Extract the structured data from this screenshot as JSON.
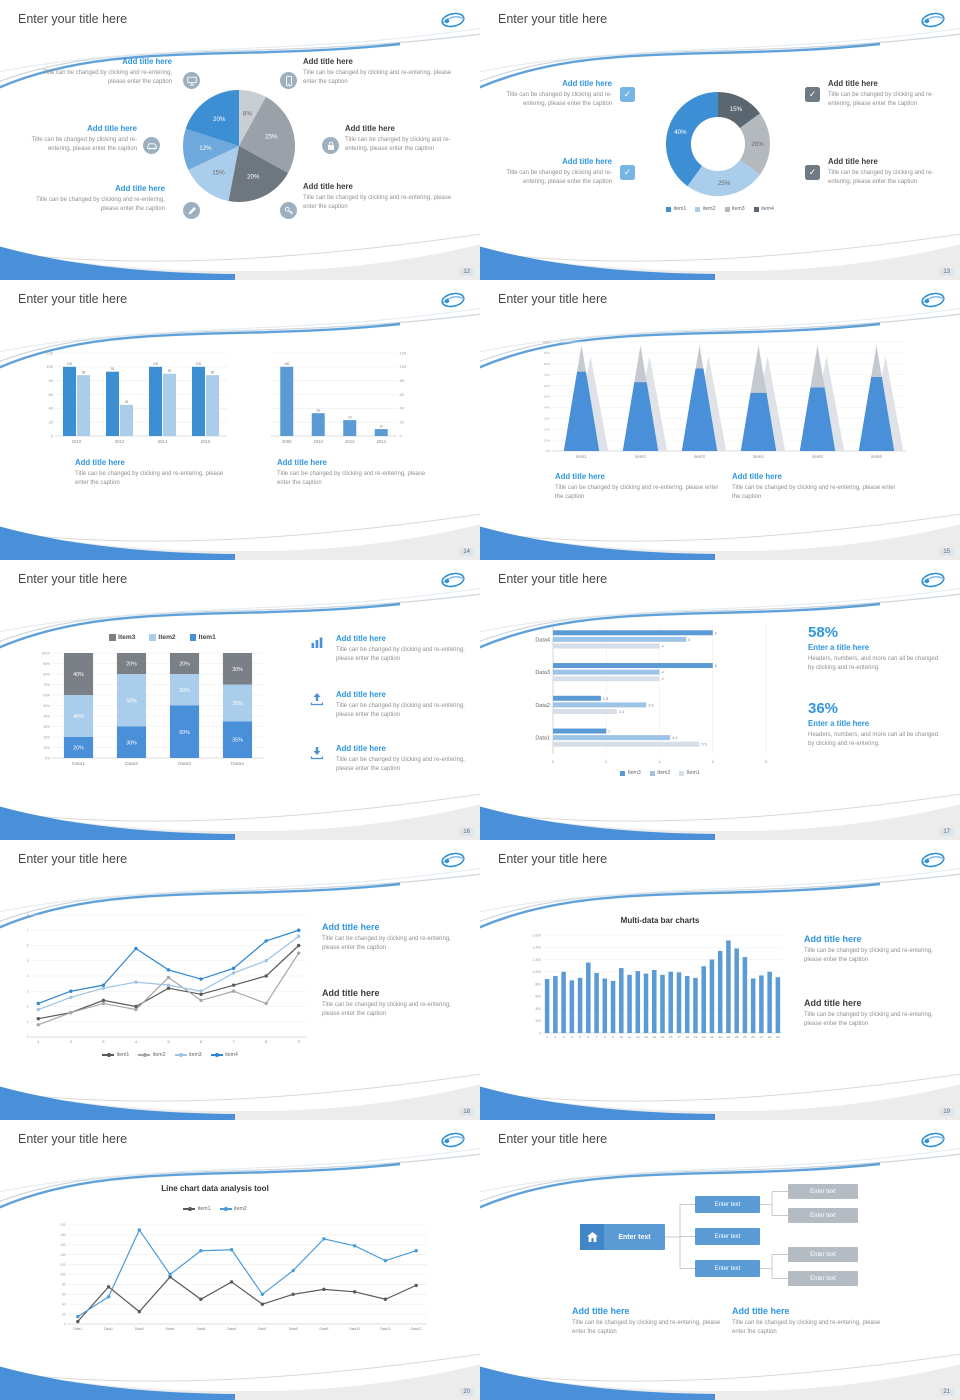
{
  "common": {
    "slide_title": "Enter your title here",
    "add_title": "Add title here",
    "caption": "Title can be changed by clicking and re-entering, please enter the caption",
    "stat_caption": "Headers, numbers, and more can all be changed by clicking and re-entering.",
    "enter_title": "Enter a title here",
    "enter_text": "Enter text"
  },
  "stats": {
    "percent1": "58%",
    "percent2": "36%"
  },
  "pages": [
    "12",
    "13",
    "14",
    "15",
    "16",
    "17",
    "18",
    "19",
    "20",
    "21"
  ],
  "chart_data": [
    {
      "id": "pie1",
      "type": "pie",
      "values": [
        8,
        25,
        20,
        15,
        12,
        20
      ],
      "labels": [
        "8%",
        "25%",
        "20%",
        "15%",
        "12%",
        "20%"
      ],
      "colors": [
        "#c9ced3",
        "#9aa1a8",
        "#6e767e",
        "#a9cdea",
        "#6fa8dc",
        "#3d8fd4"
      ]
    },
    {
      "id": "donut1",
      "type": "donut",
      "values": [
        15,
        20,
        25,
        40
      ],
      "labels": [
        "15%",
        "20%",
        "25%",
        "40%"
      ],
      "colors": [
        "#5b6770",
        "#b4b9be",
        "#a9cdea",
        "#3d8fd4"
      ],
      "legend": [
        {
          "label": "item1",
          "color": "#3d8fd4"
        },
        {
          "label": "item2",
          "color": "#a9cdea"
        },
        {
          "label": "item3",
          "color": "#b4b9be"
        },
        {
          "label": "item4",
          "color": "#5b6770"
        }
      ]
    },
    {
      "id": "bar1",
      "type": "vbar",
      "yaxis": "left",
      "ylim": [
        0,
        120
      ],
      "ystep": 20,
      "value_labels": true,
      "categories": [
        "2010",
        "2012",
        "2014",
        "2016"
      ],
      "series": [
        {
          "name": "s1",
          "color": "#3d8fd4",
          "values": [
            100,
            93,
            100,
            100
          ]
        },
        {
          "name": "s2",
          "color": "#a9cdea",
          "values": [
            88,
            45,
            90,
            88
          ]
        }
      ]
    },
    {
      "id": "bar2",
      "type": "vbar",
      "yaxis": "right",
      "ylim": [
        0,
        120
      ],
      "ystep": 20,
      "value_labels": true,
      "categories": [
        "2008",
        "2010",
        "2012",
        "2014"
      ],
      "series": [
        {
          "name": "s1",
          "color": "#5b9bd5",
          "values": [
            100,
            33,
            23,
            10
          ]
        }
      ]
    },
    {
      "id": "cone1",
      "type": "cone",
      "ylim": [
        0,
        100
      ],
      "ystep": 10,
      "categories": [
        "item1",
        "item2",
        "item3",
        "item4",
        "item5",
        "item6"
      ],
      "values": [
        75,
        65,
        78,
        55,
        60,
        70
      ],
      "front_color": "#4a90d9",
      "back_color": "#c5cad0"
    },
    {
      "id": "stack1",
      "type": "stacked",
      "ylim": [
        0,
        100
      ],
      "ystep": 10,
      "categories": [
        "Data1",
        "Data2",
        "Data3",
        "Data4"
      ],
      "series": [
        {
          "name": "Item1",
          "color": "#4a90d9",
          "values": [
            20,
            30,
            50,
            35
          ]
        },
        {
          "name": "Item2",
          "color": "#a9cdea",
          "values": [
            40,
            50,
            30,
            35
          ]
        },
        {
          "name": "Item3",
          "color": "#7b8087",
          "values": [
            40,
            20,
            20,
            30
          ]
        }
      ],
      "legend_order": [
        "Item3",
        "Item2",
        "Item1"
      ]
    },
    {
      "id": "hbar1",
      "type": "hbar",
      "xlim": [
        0,
        8
      ],
      "xstep": 2,
      "value_labels": true,
      "categories": [
        "Data4",
        "Data3",
        "Data2",
        "Data1"
      ],
      "series": [
        {
          "name": "Item3",
          "color": "#5b9bd5",
          "values": [
            6,
            6,
            1.8,
            2
          ]
        },
        {
          "name": "Item2",
          "color": "#9dc3e6",
          "values": [
            5,
            4,
            3.5,
            4.4
          ]
        },
        {
          "name": "Item1",
          "color": "#d6dee8",
          "values": [
            4,
            4,
            2.4,
            5.5
          ]
        }
      ]
    },
    {
      "id": "line4",
      "type": "line",
      "ylim": [
        0,
        8
      ],
      "ystep": 1,
      "x": [
        "1",
        "2",
        "3",
        "4",
        "5",
        "6",
        "7",
        "8",
        "9"
      ],
      "series": [
        {
          "name": "item1",
          "color": "#595959",
          "values": [
            1.2,
            1.6,
            2.4,
            2.0,
            3.2,
            2.8,
            3.4,
            4.0,
            6.0
          ]
        },
        {
          "name": "item2",
          "color": "#a6a6a6",
          "values": [
            0.8,
            1.6,
            2.2,
            1.8,
            3.9,
            2.4,
            3.0,
            2.2,
            5.5
          ]
        },
        {
          "name": "item3",
          "color": "#9dc3e6",
          "values": [
            1.8,
            2.6,
            3.2,
            3.6,
            3.4,
            3.0,
            4.2,
            5.0,
            6.6
          ]
        },
        {
          "name": "item4",
          "color": "#2e86d1",
          "values": [
            2.2,
            3.0,
            3.4,
            5.8,
            4.4,
            3.8,
            4.5,
            6.3,
            7.0
          ]
        }
      ]
    },
    {
      "id": "bar29",
      "type": "vbar",
      "yaxis": "left",
      "ylim": [
        0,
        1600
      ],
      "ystep": 200,
      "tiny": true,
      "title": "Multi-data bar charts",
      "categories": [
        "1",
        "2",
        "3",
        "4",
        "5",
        "6",
        "7",
        "8",
        "9",
        "10",
        "11",
        "12",
        "13",
        "14",
        "15",
        "16",
        "17",
        "18",
        "19",
        "20",
        "21",
        "22",
        "23",
        "24",
        "25",
        "26",
        "27",
        "28",
        "29"
      ],
      "series": [
        {
          "name": "data",
          "color": "#5b9bd5",
          "values": [
            880,
            930,
            1000,
            860,
            900,
            1150,
            980,
            890,
            850,
            1060,
            950,
            1010,
            970,
            1030,
            950,
            1000,
            990,
            930,
            900,
            1090,
            1200,
            1340,
            1510,
            1380,
            1240,
            890,
            940,
            1000,
            910
          ]
        }
      ]
    },
    {
      "id": "line2",
      "type": "line",
      "ylim": [
        0,
        200
      ],
      "ystep": 20,
      "title": "Line chart data analysis tool",
      "x": [
        "Data1",
        "Data2",
        "Data3",
        "Data4",
        "Data5",
        "Data6",
        "Data7",
        "Data8",
        "Data9",
        "Data10",
        "Data11",
        "Data12"
      ],
      "series": [
        {
          "name": "item1",
          "color": "#595959",
          "values": [
            5,
            75,
            25,
            95,
            50,
            85,
            40,
            60,
            70,
            65,
            50,
            78
          ]
        },
        {
          "name": "item2",
          "color": "#4a9bd8",
          "values": [
            15,
            55,
            190,
            100,
            148,
            150,
            60,
            108,
            172,
            158,
            128,
            148
          ]
        }
      ]
    }
  ]
}
